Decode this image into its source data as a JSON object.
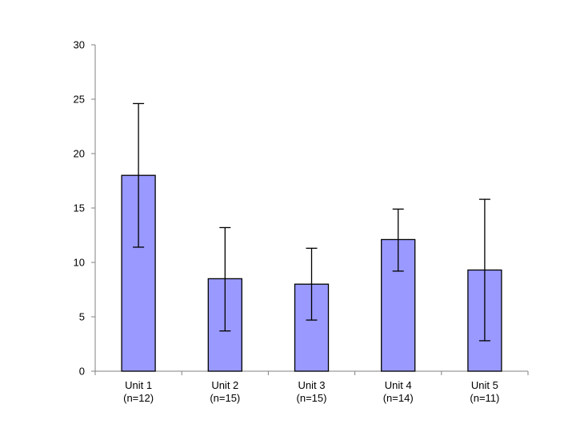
{
  "chart_data": {
    "type": "bar",
    "title": "",
    "xlabel": "",
    "ylabel": "",
    "ylim": [
      0,
      30
    ],
    "yticks": [
      0,
      5,
      10,
      15,
      20,
      25,
      30
    ],
    "grid": false,
    "legend": "none",
    "categories": [
      {
        "name": "Unit 1",
        "n": "(n=12)"
      },
      {
        "name": "Unit 2",
        "n": "(n=15)"
      },
      {
        "name": "Unit 3",
        "n": "(n=15)"
      },
      {
        "name": "Unit 4",
        "n": "(n=14)"
      },
      {
        "name": "Unit 5",
        "n": "(n=11)"
      }
    ],
    "values": [
      18.0,
      8.5,
      8.0,
      12.1,
      9.3
    ],
    "error_low": [
      11.4,
      3.7,
      4.7,
      9.2,
      2.8
    ],
    "error_high": [
      24.6,
      13.2,
      11.3,
      14.9,
      15.8
    ],
    "colors": {
      "bar_fill": "#9999ff",
      "bar_stroke": "#000000",
      "axis": "#808080",
      "error": "#000000"
    }
  }
}
